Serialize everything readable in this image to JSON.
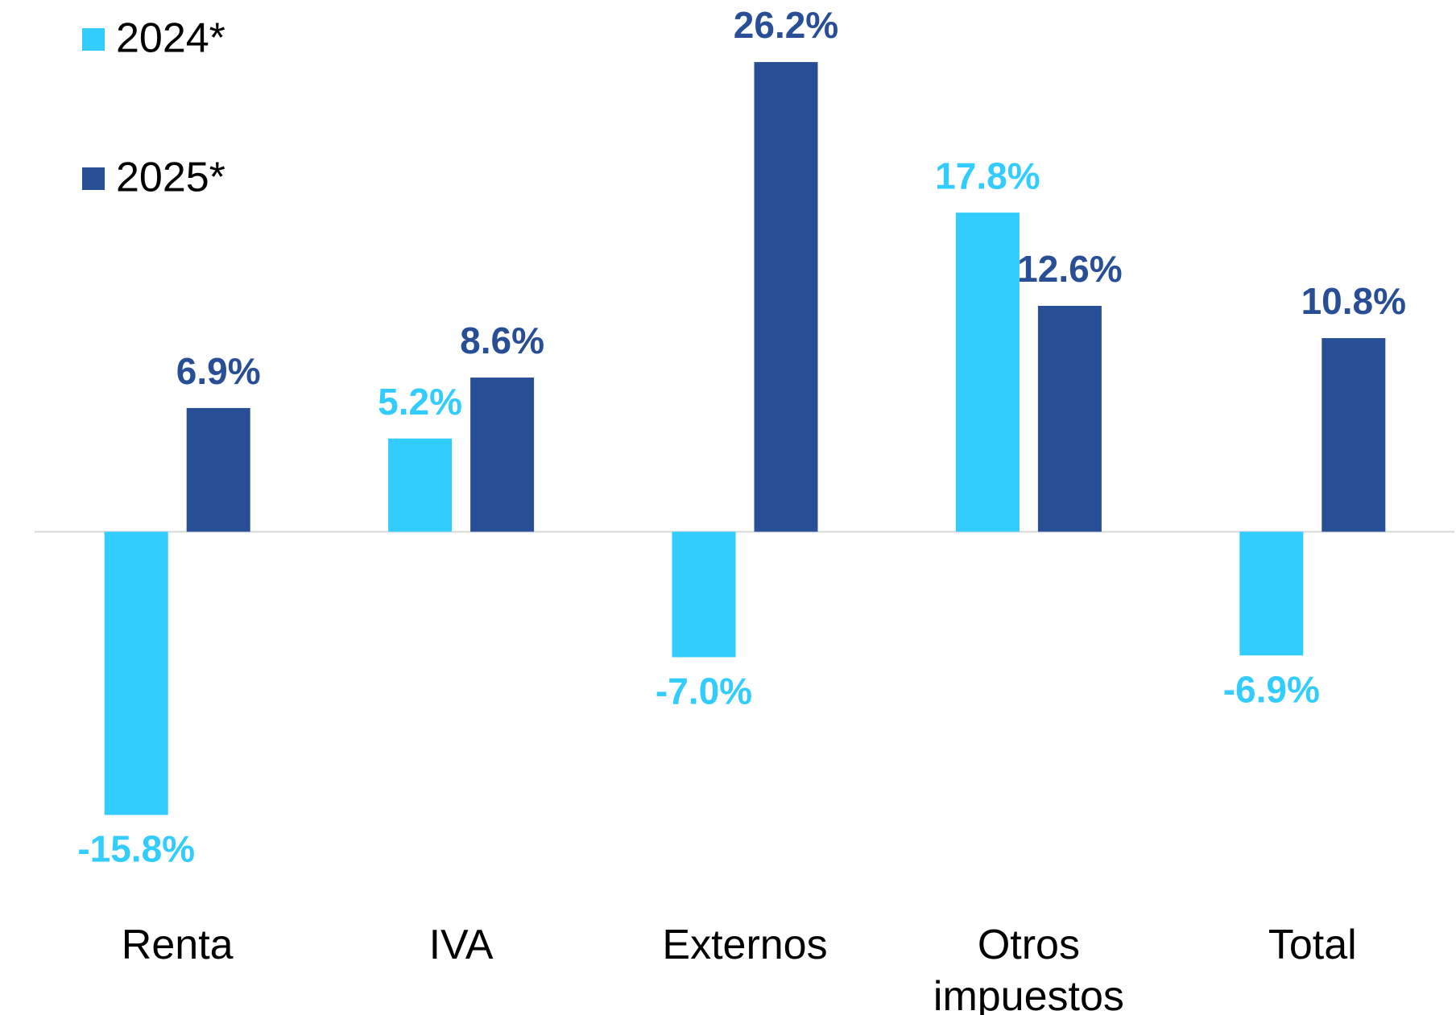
{
  "chart_data": {
    "type": "bar",
    "categories": [
      "Renta",
      "IVA",
      "Externos",
      "Otros impuestos",
      "Total"
    ],
    "series": [
      {
        "name": "2024*",
        "color": "#33ccff",
        "values": [
          -15.8,
          5.2,
          -7.0,
          17.8,
          -6.9
        ],
        "value_labels": [
          "-15.8%",
          "5.2%",
          "-7.0%",
          "17.8%",
          "-6.9%"
        ]
      },
      {
        "name": "2025*",
        "color": "#284f96",
        "values": [
          6.9,
          8.6,
          26.2,
          12.6,
          10.8
        ],
        "value_labels": [
          "6.9%",
          "8.6%",
          "26.2%",
          "12.6%",
          "10.8%"
        ]
      }
    ],
    "ylim": [
      -20,
      28
    ]
  }
}
